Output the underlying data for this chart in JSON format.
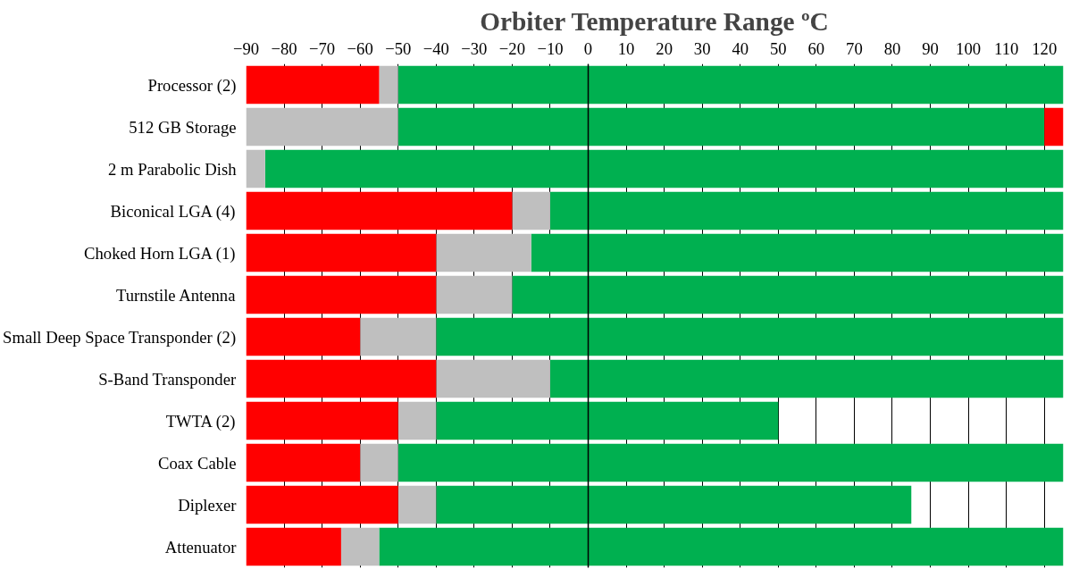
{
  "chart_data": {
    "type": "bar",
    "title": "Orbiter Temperature Range ºC",
    "orientation": "horizontal",
    "stacked": true,
    "categories": [
      "Processor (2)",
      "512 GB Storage",
      "2 m Parabolic Dish",
      "Biconical LGA (4)",
      "Choked Horn LGA (1)",
      "Turnstile Antenna",
      "Small Deep Space Transponder (2)",
      "S-Band Transponder",
      "TWTA (2)",
      "Coax Cable",
      "Diplexer",
      "Attenuator"
    ],
    "series": [
      {
        "color": "#00b050",
        "values": [
          125,
          120,
          125,
          125,
          125,
          125,
          125,
          125,
          50,
          125,
          85,
          125
        ]
      },
      {
        "color": "#ff0000",
        "values": [
          null,
          5,
          null,
          null,
          null,
          null,
          null,
          null,
          null,
          null,
          null,
          null
        ]
      },
      {
        "color": "#00b050",
        "values": [
          -50,
          -50,
          -85,
          -10,
          -15,
          -20,
          -40,
          -10,
          -40,
          -50,
          -40,
          -55
        ]
      },
      {
        "color": "#bfbfbf",
        "values": [
          -5,
          -40,
          -5,
          -10,
          -25,
          -20,
          -20,
          -30,
          -10,
          -10,
          -10,
          -10
        ]
      },
      {
        "color": "#ff0000",
        "values": [
          -35,
          null,
          null,
          -70,
          -50,
          -50,
          -30,
          -50,
          -40,
          -30,
          -40,
          -25
        ]
      }
    ],
    "xlim": [
      -90,
      125
    ],
    "xticks": [
      -90,
      -80,
      -70,
      -60,
      -50,
      -40,
      -30,
      -20,
      -10,
      0,
      10,
      20,
      30,
      40,
      50,
      60,
      70,
      80,
      90,
      100,
      110,
      120
    ],
    "grid": "x",
    "ref_lines": [
      {
        "axis": "x",
        "value": 0,
        "color": "#000000"
      }
    ]
  }
}
